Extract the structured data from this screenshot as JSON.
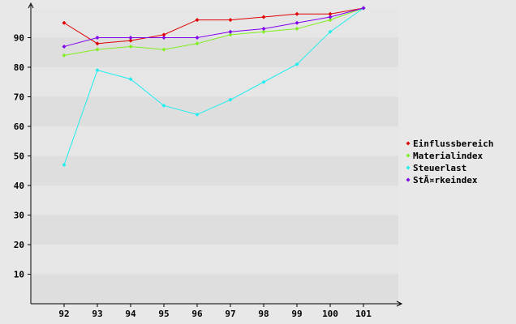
{
  "chart_data": {
    "type": "line",
    "title": "",
    "xlabel": "",
    "ylabel": "",
    "categories": [
      "92",
      "93",
      "94",
      "95",
      "96",
      "97",
      "98",
      "99",
      "100",
      "101"
    ],
    "ylim": [
      0,
      100
    ],
    "yticks": [
      10,
      20,
      30,
      40,
      50,
      60,
      70,
      80,
      90
    ],
    "grid": "horizontal alternating bands",
    "legend_position": "right",
    "series": [
      {
        "name": "Einflussbereich",
        "color": "#e00000",
        "values": [
          95,
          88,
          89,
          91,
          96,
          96,
          97,
          98,
          98,
          100
        ]
      },
      {
        "name": "Materialindex",
        "color": "#80ee20",
        "values": [
          84,
          86,
          87,
          86,
          88,
          91,
          92,
          93,
          96,
          100
        ]
      },
      {
        "name": "Steuerlast",
        "color": "#20eeee",
        "values": [
          47,
          79,
          76,
          67,
          64,
          69,
          75,
          81,
          92,
          100
        ]
      },
      {
        "name": "StÃ¤rkeindex",
        "color": "#8000ee",
        "values": [
          87,
          90,
          90,
          90,
          90,
          92,
          93,
          95,
          97,
          100
        ]
      }
    ]
  }
}
